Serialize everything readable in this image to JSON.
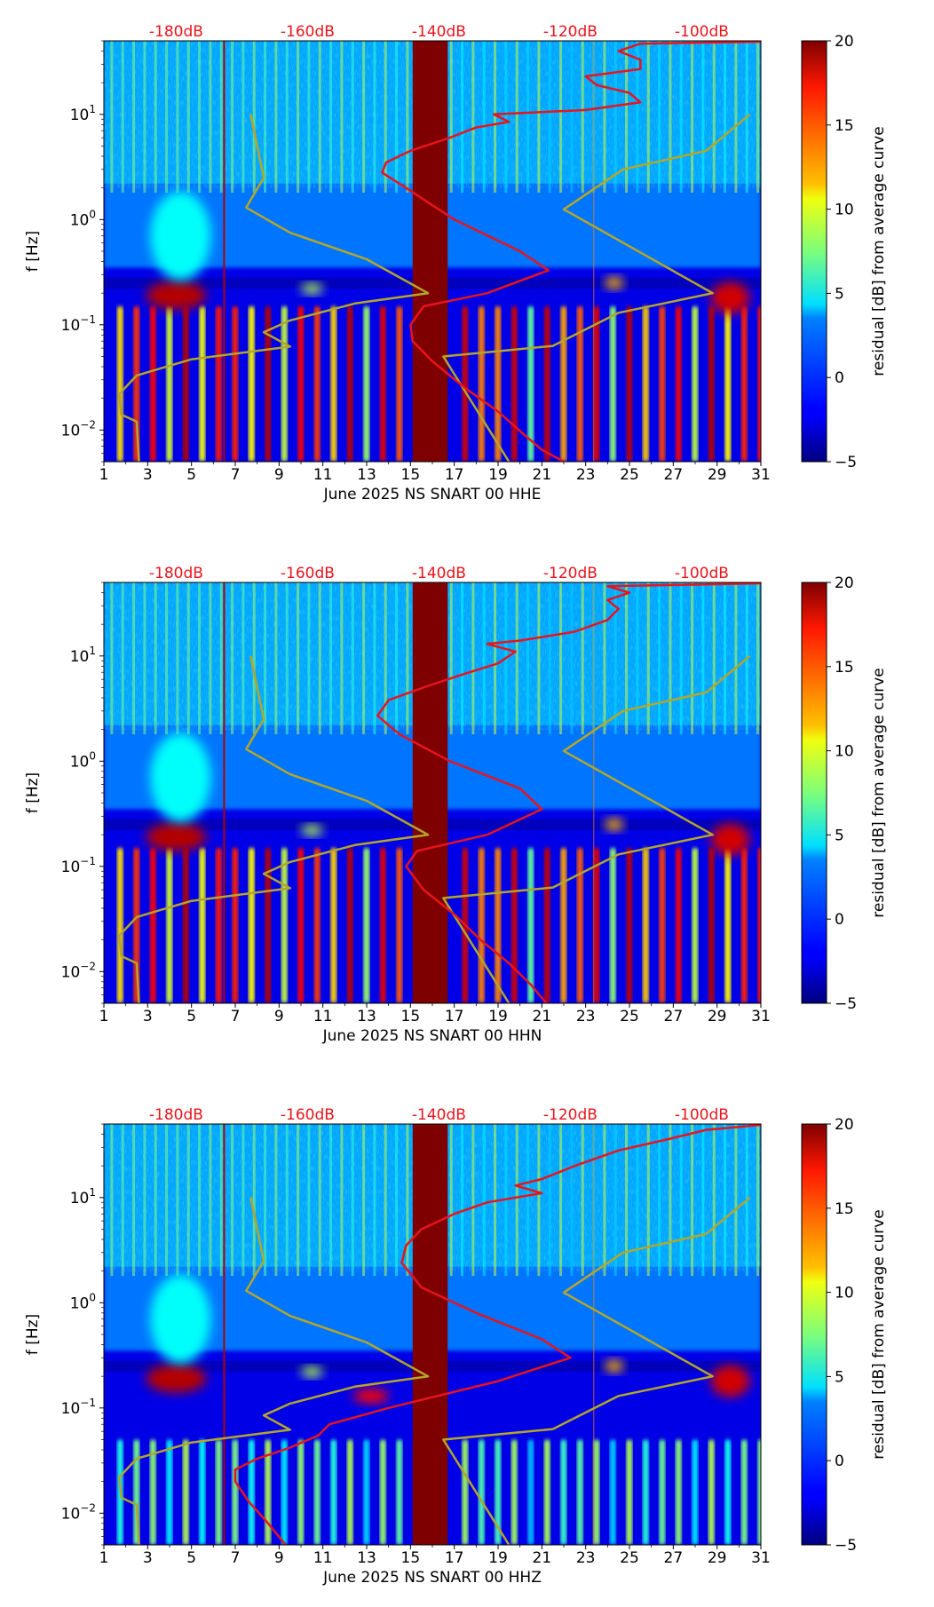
{
  "figure": {
    "colors": {
      "top_axis_label": "#e8141c",
      "psd_curve": "#e8141c",
      "noise_model": "#b3a62a",
      "gap_band": "#7f0000",
      "text": "#000000"
    },
    "colormap": "jet",
    "colorbar": {
      "label": "residual [dB] from average curve",
      "range": [
        -5,
        20
      ],
      "ticks": [
        -5,
        0,
        5,
        10,
        15,
        20
      ],
      "tick_labels": [
        "−5",
        "0",
        "5",
        "10",
        "15",
        "20"
      ]
    }
  },
  "chart_data": [
    {
      "type": "heatmap",
      "channel": "HHE",
      "title": "",
      "xlabel": "June 2025 NS SNART 00 HHE",
      "ylabel": "f [Hz]",
      "xlim": [
        1,
        31
      ],
      "ylim": [
        0.005,
        50
      ],
      "yscale": "log",
      "x_ticks": [
        1,
        3,
        5,
        7,
        9,
        11,
        13,
        15,
        17,
        19,
        21,
        23,
        25,
        27,
        29,
        31
      ],
      "y_ticks": [
        0.01,
        0.1,
        1,
        10
      ],
      "y_tick_labels": [
        {
          "base": "10",
          "exp": "−2"
        },
        {
          "base": "10",
          "exp": "−1"
        },
        {
          "base": "10",
          "exp": "0"
        },
        {
          "base": "10",
          "exp": "1"
        }
      ],
      "top_axis": {
        "labels": [
          "-180dB",
          "-160dB",
          "-140dB",
          "-120dB",
          "-100dB"
        ],
        "positions_days": [
          4.3,
          10.3,
          16.3,
          22.3,
          28.3
        ]
      },
      "gap": {
        "from_day": 15.1,
        "to_day": 16.7,
        "value": 20
      },
      "average_psd_curve": [
        {
          "day": 22.0,
          "f": 0.005
        },
        {
          "day": 21.0,
          "f": 0.0065
        },
        {
          "day": 20.2,
          "f": 0.009
        },
        {
          "day": 19.0,
          "f": 0.015
        },
        {
          "day": 17.5,
          "f": 0.025
        },
        {
          "day": 16.0,
          "f": 0.045
        },
        {
          "day": 15.1,
          "f": 0.07
        },
        {
          "day": 15.0,
          "f": 0.1
        },
        {
          "day": 15.6,
          "f": 0.15
        },
        {
          "day": 18.5,
          "f": 0.2
        },
        {
          "day": 21.3,
          "f": 0.33
        },
        {
          "day": 20.0,
          "f": 0.5
        },
        {
          "day": 17.0,
          "f": 1.0
        },
        {
          "day": 14.8,
          "f": 2.0
        },
        {
          "day": 13.7,
          "f": 2.8
        },
        {
          "day": 13.9,
          "f": 3.5
        },
        {
          "day": 15.0,
          "f": 4.5
        },
        {
          "day": 16.8,
          "f": 6.0
        },
        {
          "day": 18.0,
          "f": 7.5
        },
        {
          "day": 19.5,
          "f": 8.5
        },
        {
          "day": 18.8,
          "f": 10.0
        },
        {
          "day": 23.0,
          "f": 11.0
        },
        {
          "day": 25.5,
          "f": 13.0
        },
        {
          "day": 25.0,
          "f": 16.0
        },
        {
          "day": 23.5,
          "f": 19.0
        },
        {
          "day": 23.0,
          "f": 23.0
        },
        {
          "day": 25.5,
          "f": 27.0
        },
        {
          "day": 25.5,
          "f": 33.0
        },
        {
          "day": 24.5,
          "f": 40.0
        },
        {
          "day": 25.5,
          "f": 47.0
        },
        {
          "day": 31.0,
          "f": 49.0
        }
      ],
      "noise_model_curve": [
        {
          "day": 2.6,
          "f": 0.005
        },
        {
          "day": 2.5,
          "f": 0.012
        },
        {
          "day": 1.8,
          "f": 0.014
        },
        {
          "day": 1.7,
          "f": 0.022
        },
        {
          "day": 2.5,
          "f": 0.033
        },
        {
          "day": 3.5,
          "f": 0.038
        },
        {
          "day": 5.0,
          "f": 0.047
        },
        {
          "day": 9.5,
          "f": 0.062
        },
        {
          "day": 8.3,
          "f": 0.085
        },
        {
          "day": 9.5,
          "f": 0.11
        },
        {
          "day": 12.5,
          "f": 0.16
        },
        {
          "day": 15.8,
          "f": 0.2
        },
        {
          "day": 13.0,
          "f": 0.42
        },
        {
          "day": 9.5,
          "f": 0.75
        },
        {
          "day": 7.5,
          "f": 1.3
        },
        {
          "day": 8.3,
          "f": 2.5
        },
        {
          "day": 8.0,
          "f": 5.0
        },
        {
          "day": 7.7,
          "f": 10.0
        }
      ],
      "noise_model_curve_right": [
        {
          "day": 19.5,
          "f": 0.005
        },
        {
          "day": 16.5,
          "f": 0.05
        },
        {
          "day": 21.5,
          "f": 0.063
        },
        {
          "day": 24.5,
          "f": 0.13
        },
        {
          "day": 28.8,
          "f": 0.2
        },
        {
          "day": 22.0,
          "f": 1.25
        },
        {
          "day": 24.7,
          "f": 3.0
        },
        {
          "day": 28.5,
          "f": 4.5
        },
        {
          "day": 30.5,
          "f": 10.0
        }
      ]
    },
    {
      "type": "heatmap",
      "channel": "HHN",
      "title": "",
      "xlabel": "June 2025 NS SNART 00 HHN",
      "ylabel": "f [Hz]",
      "xlim": [
        1,
        31
      ],
      "ylim": [
        0.005,
        50
      ],
      "yscale": "log",
      "x_ticks": [
        1,
        3,
        5,
        7,
        9,
        11,
        13,
        15,
        17,
        19,
        21,
        23,
        25,
        27,
        29,
        31
      ],
      "y_ticks": [
        0.01,
        0.1,
        1,
        10
      ],
      "y_tick_labels": [
        {
          "base": "10",
          "exp": "−2"
        },
        {
          "base": "10",
          "exp": "−1"
        },
        {
          "base": "10",
          "exp": "0"
        },
        {
          "base": "10",
          "exp": "1"
        }
      ],
      "top_axis": {
        "labels": [
          "-180dB",
          "-160dB",
          "-140dB",
          "-120dB",
          "-100dB"
        ],
        "positions_days": [
          4.3,
          10.3,
          16.3,
          22.3,
          28.3
        ]
      },
      "gap": {
        "from_day": 15.1,
        "to_day": 16.7,
        "value": 20
      },
      "average_psd_curve": [
        {
          "day": 21.2,
          "f": 0.005
        },
        {
          "day": 20.5,
          "f": 0.0075
        },
        {
          "day": 19.5,
          "f": 0.012
        },
        {
          "day": 18.2,
          "f": 0.02
        },
        {
          "day": 17.0,
          "f": 0.035
        },
        {
          "day": 15.6,
          "f": 0.06
        },
        {
          "day": 14.8,
          "f": 0.1
        },
        {
          "day": 15.3,
          "f": 0.14
        },
        {
          "day": 18.5,
          "f": 0.2
        },
        {
          "day": 21.0,
          "f": 0.35
        },
        {
          "day": 20.0,
          "f": 0.55
        },
        {
          "day": 16.8,
          "f": 1.0
        },
        {
          "day": 14.5,
          "f": 1.8
        },
        {
          "day": 13.5,
          "f": 2.7
        },
        {
          "day": 14.0,
          "f": 3.8
        },
        {
          "day": 15.8,
          "f": 5.2
        },
        {
          "day": 17.5,
          "f": 6.8
        },
        {
          "day": 19.0,
          "f": 8.5
        },
        {
          "day": 19.8,
          "f": 11.0
        },
        {
          "day": 18.5,
          "f": 13.0
        },
        {
          "day": 20.0,
          "f": 14.0
        },
        {
          "day": 22.5,
          "f": 17.0
        },
        {
          "day": 24.0,
          "f": 22.0
        },
        {
          "day": 24.5,
          "f": 28.0
        },
        {
          "day": 24.0,
          "f": 34.0
        },
        {
          "day": 25.0,
          "f": 40.0
        },
        {
          "day": 24.0,
          "f": 46.0
        },
        {
          "day": 31.0,
          "f": 49.0
        }
      ],
      "noise_model_curve": [
        {
          "day": 2.6,
          "f": 0.005
        },
        {
          "day": 2.5,
          "f": 0.012
        },
        {
          "day": 1.8,
          "f": 0.014
        },
        {
          "day": 1.7,
          "f": 0.022
        },
        {
          "day": 2.5,
          "f": 0.033
        },
        {
          "day": 3.5,
          "f": 0.038
        },
        {
          "day": 5.0,
          "f": 0.047
        },
        {
          "day": 9.5,
          "f": 0.062
        },
        {
          "day": 8.3,
          "f": 0.085
        },
        {
          "day": 9.5,
          "f": 0.11
        },
        {
          "day": 12.5,
          "f": 0.16
        },
        {
          "day": 15.8,
          "f": 0.2
        },
        {
          "day": 13.0,
          "f": 0.42
        },
        {
          "day": 9.5,
          "f": 0.75
        },
        {
          "day": 7.5,
          "f": 1.3
        },
        {
          "day": 8.3,
          "f": 2.5
        },
        {
          "day": 8.0,
          "f": 5.0
        },
        {
          "day": 7.7,
          "f": 10.0
        }
      ],
      "noise_model_curve_right": [
        {
          "day": 19.5,
          "f": 0.005
        },
        {
          "day": 16.5,
          "f": 0.05
        },
        {
          "day": 21.5,
          "f": 0.063
        },
        {
          "day": 24.5,
          "f": 0.13
        },
        {
          "day": 28.8,
          "f": 0.2
        },
        {
          "day": 22.0,
          "f": 1.25
        },
        {
          "day": 24.7,
          "f": 3.0
        },
        {
          "day": 28.5,
          "f": 4.5
        },
        {
          "day": 30.5,
          "f": 10.0
        }
      ]
    },
    {
      "type": "heatmap",
      "channel": "HHZ",
      "title": "",
      "xlabel": "June 2025 NS SNART 00 HHZ",
      "ylabel": "f [Hz]",
      "xlim": [
        1,
        31
      ],
      "ylim": [
        0.005,
        50
      ],
      "yscale": "log",
      "x_ticks": [
        1,
        3,
        5,
        7,
        9,
        11,
        13,
        15,
        17,
        19,
        21,
        23,
        25,
        27,
        29,
        31
      ],
      "y_ticks": [
        0.01,
        0.1,
        1,
        10
      ],
      "y_tick_labels": [
        {
          "base": "10",
          "exp": "−2"
        },
        {
          "base": "10",
          "exp": "−1"
        },
        {
          "base": "10",
          "exp": "0"
        },
        {
          "base": "10",
          "exp": "1"
        }
      ],
      "top_axis": {
        "labels": [
          "-180dB",
          "-160dB",
          "-140dB",
          "-120dB",
          "-100dB"
        ],
        "positions_days": [
          4.3,
          10.3,
          16.3,
          22.3,
          28.3
        ]
      },
      "gap": {
        "from_day": 15.1,
        "to_day": 16.7,
        "value": 20
      },
      "average_psd_curve": [
        {
          "day": 9.3,
          "f": 0.005
        },
        {
          "day": 8.5,
          "f": 0.008
        },
        {
          "day": 7.6,
          "f": 0.013
        },
        {
          "day": 7.0,
          "f": 0.02
        },
        {
          "day": 7.0,
          "f": 0.026
        },
        {
          "day": 8.0,
          "f": 0.033
        },
        {
          "day": 9.5,
          "f": 0.042
        },
        {
          "day": 10.8,
          "f": 0.055
        },
        {
          "day": 11.3,
          "f": 0.07
        },
        {
          "day": 14.0,
          "f": 0.1
        },
        {
          "day": 19.0,
          "f": 0.18
        },
        {
          "day": 22.3,
          "f": 0.3
        },
        {
          "day": 21.0,
          "f": 0.45
        },
        {
          "day": 18.0,
          "f": 0.8
        },
        {
          "day": 15.5,
          "f": 1.4
        },
        {
          "day": 14.6,
          "f": 2.4
        },
        {
          "day": 14.8,
          "f": 3.5
        },
        {
          "day": 15.5,
          "f": 5.0
        },
        {
          "day": 17.0,
          "f": 7.0
        },
        {
          "day": 18.5,
          "f": 9.0
        },
        {
          "day": 21.0,
          "f": 11.0
        },
        {
          "day": 19.8,
          "f": 13.0
        },
        {
          "day": 21.0,
          "f": 15.0
        },
        {
          "day": 22.5,
          "f": 20.0
        },
        {
          "day": 24.5,
          "f": 28.0
        },
        {
          "day": 26.8,
          "f": 36.0
        },
        {
          "day": 28.5,
          "f": 44.0
        },
        {
          "day": 31.0,
          "f": 49.0
        }
      ],
      "noise_model_curve": [
        {
          "day": 2.6,
          "f": 0.005
        },
        {
          "day": 2.5,
          "f": 0.012
        },
        {
          "day": 1.8,
          "f": 0.014
        },
        {
          "day": 1.7,
          "f": 0.022
        },
        {
          "day": 2.5,
          "f": 0.033
        },
        {
          "day": 3.5,
          "f": 0.038
        },
        {
          "day": 5.0,
          "f": 0.047
        },
        {
          "day": 9.5,
          "f": 0.062
        },
        {
          "day": 8.3,
          "f": 0.085
        },
        {
          "day": 9.5,
          "f": 0.11
        },
        {
          "day": 12.5,
          "f": 0.16
        },
        {
          "day": 15.8,
          "f": 0.2
        },
        {
          "day": 13.0,
          "f": 0.42
        },
        {
          "day": 9.5,
          "f": 0.75
        },
        {
          "day": 7.5,
          "f": 1.3
        },
        {
          "day": 8.3,
          "f": 2.5
        },
        {
          "day": 8.0,
          "f": 5.0
        },
        {
          "day": 7.7,
          "f": 10.0
        }
      ],
      "noise_model_curve_right": [
        {
          "day": 19.5,
          "f": 0.005
        },
        {
          "day": 16.5,
          "f": 0.05
        },
        {
          "day": 21.5,
          "f": 0.063
        },
        {
          "day": 24.5,
          "f": 0.13
        },
        {
          "day": 28.8,
          "f": 0.2
        },
        {
          "day": 22.0,
          "f": 1.25
        },
        {
          "day": 24.7,
          "f": 3.0
        },
        {
          "day": 28.5,
          "f": 4.5
        },
        {
          "day": 30.5,
          "f": 10.0
        }
      ]
    }
  ]
}
